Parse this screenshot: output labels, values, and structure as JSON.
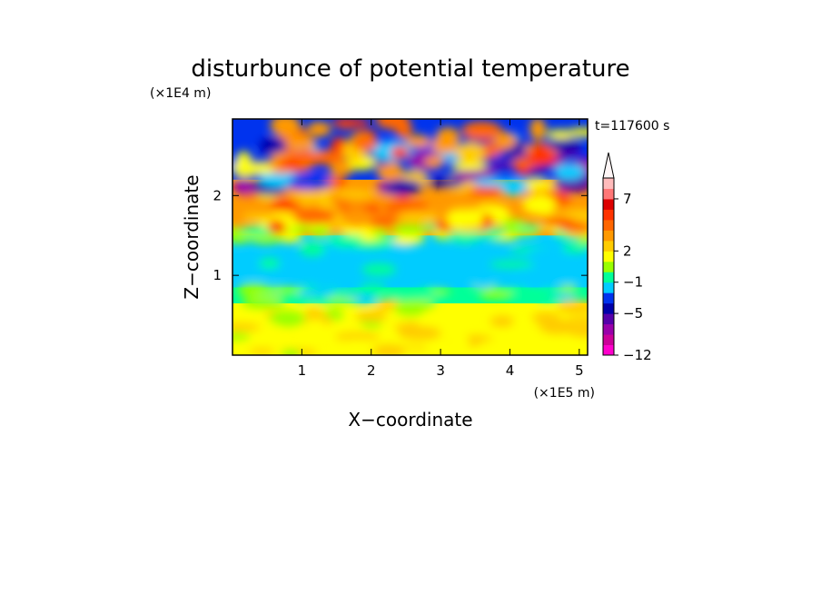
{
  "chart_data": {
    "type": "heatmap",
    "title": "disturbunce of potential temperature",
    "time_label": "t=117600 s",
    "xlabel": "X−coordinate",
    "ylabel": "Z−coordinate",
    "x_unit": "(×1E5 m)",
    "y_unit": "(×1E4 m)",
    "xlim": [
      0,
      5.12
    ],
    "ylim": [
      0,
      2.96
    ],
    "x_ticks": [
      "1",
      "2",
      "3",
      "4",
      "5"
    ],
    "y_ticks": [
      "1",
      "2"
    ],
    "x_tick_values": [
      1,
      2,
      3,
      4,
      5
    ],
    "y_tick_values": [
      1,
      2
    ],
    "colorbar": {
      "colors": [
        "#ff00cc",
        "#cc0099",
        "#9900aa",
        "#5500aa",
        "#0000aa",
        "#0033ee",
        "#00ccff",
        "#00ff99",
        "#99ff00",
        "#ffff00",
        "#ffcc00",
        "#ff9900",
        "#ff6600",
        "#ff3300",
        "#dd0000",
        "#ff7777",
        "#ffbbbb"
      ],
      "tick_labels": [
        "7",
        "2",
        "−1",
        "−5",
        "−12"
      ],
      "extend_top": true
    },
    "field_summary": [
      {
        "z_range": [
          0,
          0.65
        ],
        "typical_value": 1.5,
        "description_color": "yellow"
      },
      {
        "z_range": [
          0.65,
          0.85
        ],
        "typical_value": 0.5,
        "description_color": "green"
      },
      {
        "z_range": [
          0.85,
          1.5
        ],
        "typical_value": -0.5,
        "description_color": "cyan"
      },
      {
        "z_range": [
          1.5,
          2.2
        ],
        "typical_value": 3,
        "description_color": "orange/red"
      },
      {
        "z_range": [
          2.2,
          2.96
        ],
        "typical_value": -3,
        "description_color": "blue/purple with red patches"
      }
    ]
  }
}
